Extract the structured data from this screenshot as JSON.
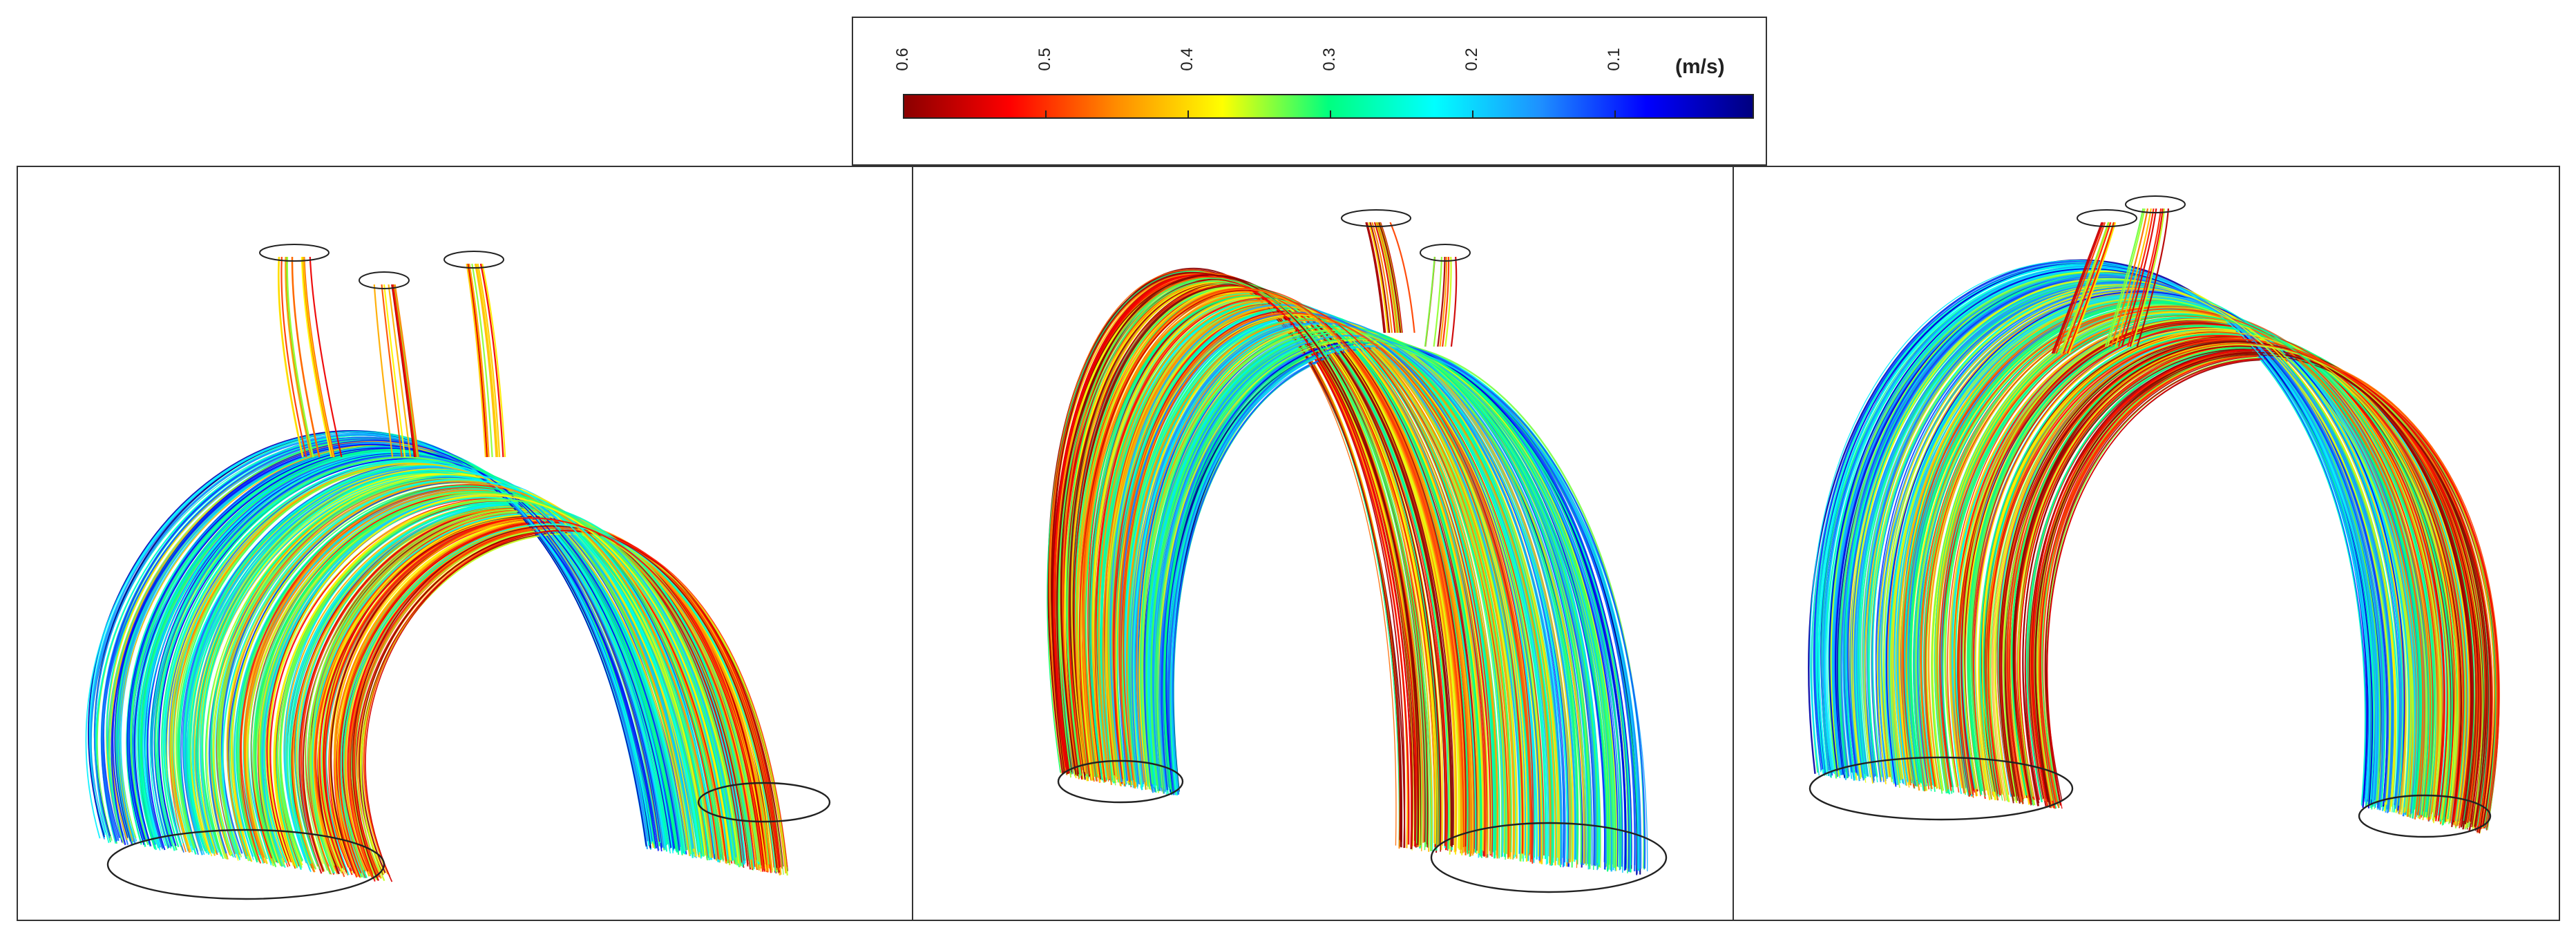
{
  "legend": {
    "unit": "(m/s)",
    "ticks": [
      "0.6",
      "0.5",
      "0.4",
      "0.3",
      "0.2",
      "0.1"
    ],
    "colormap": [
      "#8b0000",
      "#ff0000",
      "#ff8c00",
      "#ffff00",
      "#00ff7f",
      "#00ffff",
      "#1e90ff",
      "#0000ff",
      "#000080"
    ]
  },
  "panels": [
    {
      "name": "view-1"
    },
    {
      "name": "view-2"
    },
    {
      "name": "view-3"
    }
  ]
}
